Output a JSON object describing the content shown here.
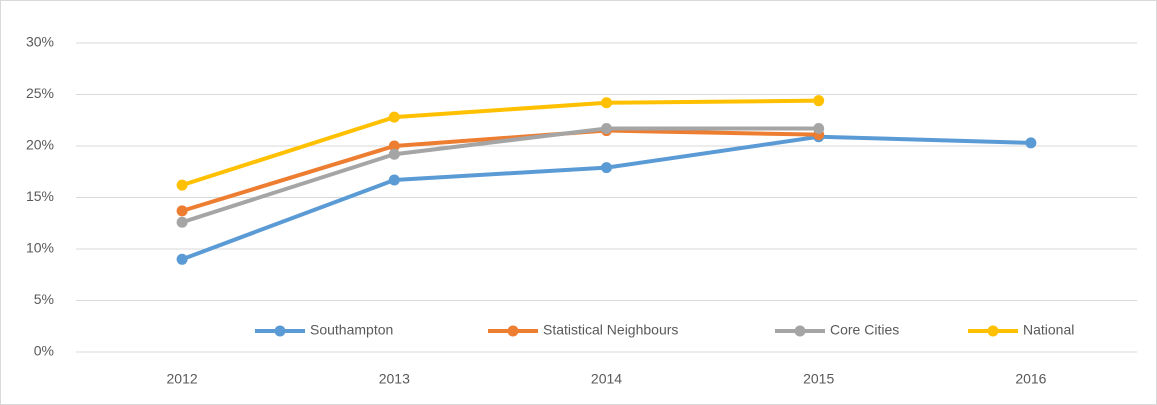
{
  "chart_data": {
    "type": "line",
    "categories": [
      "2012",
      "2013",
      "2014",
      "2015",
      "2016"
    ],
    "series": [
      {
        "name": "Southampton",
        "color": "#5b9bd5",
        "values": [
          9,
          16.7,
          17.9,
          20.9,
          20.3
        ]
      },
      {
        "name": "Statistical Neighbours",
        "color": "#ed7d31",
        "values": [
          13.7,
          20,
          21.5,
          21.1,
          null
        ]
      },
      {
        "name": "Core Cities",
        "color": "#a5a5a5",
        "values": [
          12.6,
          19.2,
          21.7,
          21.7,
          null
        ]
      },
      {
        "name": "National",
        "color": "#ffc000",
        "values": [
          16.2,
          22.8,
          24.2,
          24.4,
          null
        ]
      }
    ],
    "ylim": [
      0,
      30
    ],
    "yticks": [
      {
        "value": 0,
        "label": "0%"
      },
      {
        "value": 5,
        "label": "5%"
      },
      {
        "value": 10,
        "label": "10%"
      },
      {
        "value": 15,
        "label": "15%"
      },
      {
        "value": 20,
        "label": "20%"
      },
      {
        "value": 25,
        "label": "25%"
      },
      {
        "value": 30,
        "label": "30%"
      }
    ],
    "grid": true,
    "legend": "bottom"
  }
}
